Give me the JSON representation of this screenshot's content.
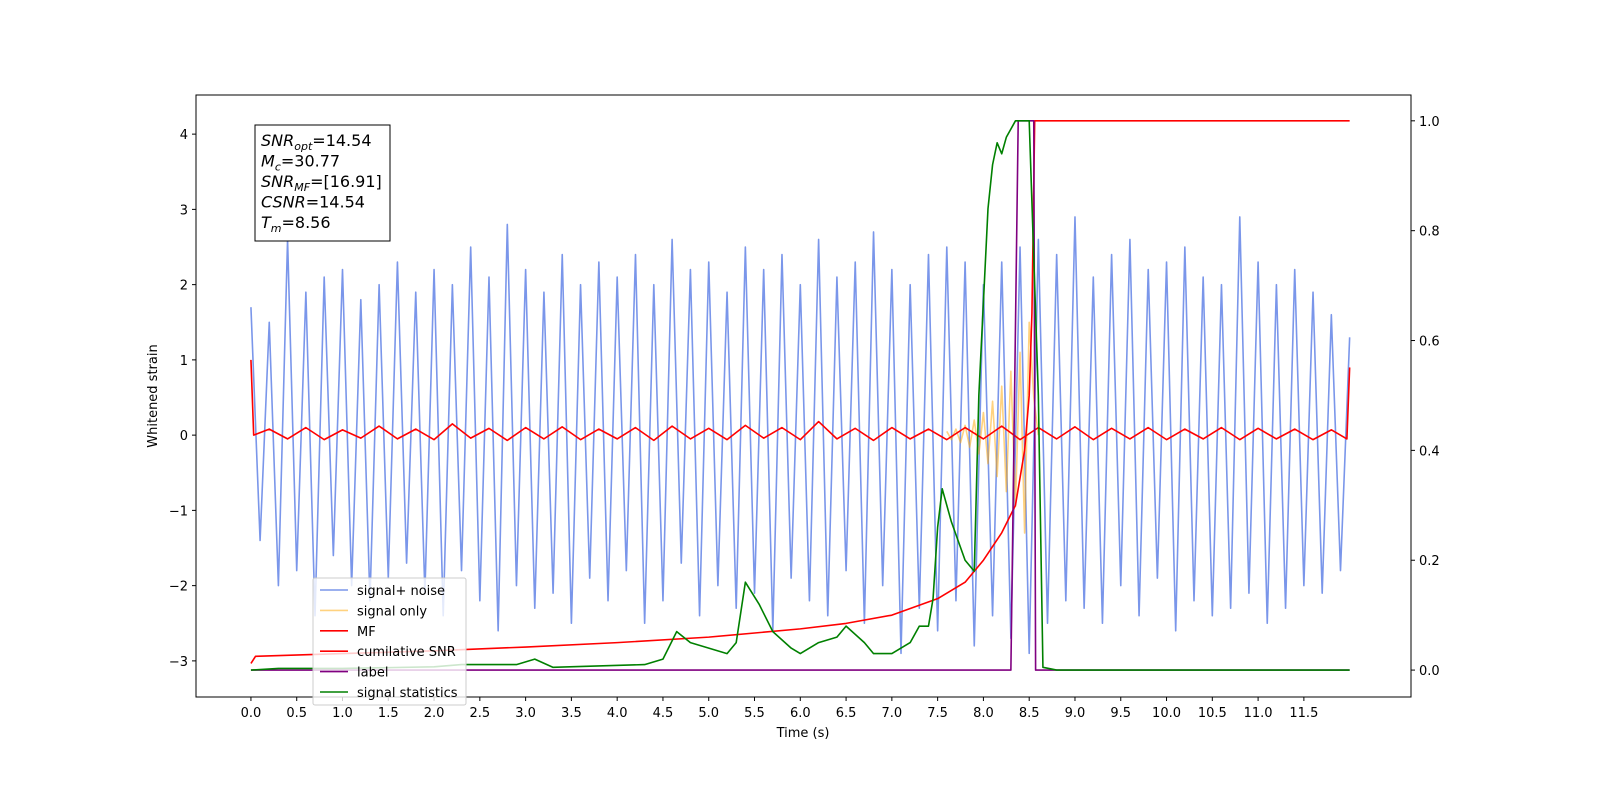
{
  "chart_data": {
    "type": "line",
    "xlabel": "Time (s)",
    "ylabel": "Whitened strain",
    "xlim": [
      -0.6,
      12.67
    ],
    "ylim": [
      -3.48,
      4.52
    ],
    "y2lim": [
      -0.049,
      1.047
    ],
    "xticks": [
      {
        "value": 0,
        "label": "0.0"
      },
      0.5,
      {
        "value": 1,
        "label": "1.0"
      },
      1.5,
      {
        "value": 2,
        "label": "2.0"
      },
      2.5,
      {
        "value": 3,
        "label": "3.0"
      },
      3.5,
      {
        "value": 4,
        "label": "4.0"
      },
      4.5,
      {
        "value": 5,
        "label": "5.0"
      },
      5.5,
      {
        "value": 6,
        "label": "6.0"
      },
      6.5,
      {
        "value": 7,
        "label": "7.0"
      },
      7.5,
      {
        "value": 8,
        "label": "8.0"
      },
      8.5,
      {
        "value": 9,
        "label": "9.0"
      },
      9.5,
      {
        "value": 10,
        "label": "10.0"
      },
      10.5,
      {
        "value": 11,
        "label": "11.0"
      },
      11.5
    ],
    "yticks": [
      {
        "value": -3,
        "label": "−3"
      },
      {
        "value": -2,
        "label": "−2"
      },
      {
        "value": -1,
        "label": "−1"
      },
      0,
      1,
      2,
      3,
      4
    ],
    "y2ticks": [
      {
        "value": 0,
        "label": "0.0"
      },
      {
        "value": 0.2,
        "label": "0.2"
      },
      {
        "value": 0.4,
        "label": "0.4"
      },
      {
        "value": 0.6,
        "label": "0.6"
      },
      {
        "value": 0.8,
        "label": "0.8"
      },
      {
        "value": 1,
        "label": "1.0"
      }
    ],
    "legend": "lower left",
    "annotations": [
      {
        "name": "SNR",
        "sub": "opt",
        "text": "=14.54"
      },
      {
        "name": "M",
        "sub": "c",
        "text": "=30.77"
      },
      {
        "name": "SNR",
        "sub": "MF",
        "text": "=[16.91]"
      },
      {
        "name": "CSNR",
        "text": "=14.54"
      },
      {
        "name": "T",
        "sub": "m",
        "text": "=8.56"
      }
    ],
    "series": [
      {
        "name": "signal+ noise",
        "color": "#4169e1b3",
        "x": [
          0,
          0.1,
          0.2,
          0.3,
          0.4,
          0.5,
          0.6,
          0.7,
          0.8,
          0.9,
          1,
          1.1,
          1.2,
          1.3,
          1.4,
          1.5,
          1.6,
          1.7,
          1.8,
          1.9,
          2,
          2.1,
          2.2,
          2.3,
          2.4,
          2.5,
          2.6,
          2.7,
          2.8,
          2.9,
          3,
          3.1,
          3.2,
          3.3,
          3.4,
          3.5,
          3.6,
          3.7,
          3.8,
          3.9,
          4,
          4.1,
          4.2,
          4.3,
          4.4,
          4.5,
          4.6,
          4.7,
          4.8,
          4.9,
          5,
          5.1,
          5.2,
          5.3,
          5.4,
          5.5,
          5.6,
          5.7,
          5.8,
          5.9,
          6,
          6.1,
          6.2,
          6.3,
          6.4,
          6.5,
          6.6,
          6.7,
          6.8,
          6.9,
          7,
          7.1,
          7.2,
          7.3,
          7.4,
          7.5,
          7.6,
          7.7,
          7.8,
          7.9,
          8,
          8.1,
          8.2,
          8.3,
          8.4,
          8.5,
          8.6,
          8.7,
          8.8,
          8.9,
          9,
          9.1,
          9.2,
          9.3,
          9.4,
          9.5,
          9.6,
          9.7,
          9.8,
          9.9,
          10,
          10.1,
          10.2,
          10.3,
          10.4,
          10.5,
          10.6,
          10.7,
          10.8,
          10.9,
          11,
          11.1,
          11.2,
          11.3,
          11.4,
          11.5,
          11.6,
          11.7,
          11.8,
          11.9,
          12
        ],
        "values": [
          1.7,
          -1.4,
          1.5,
          -2.0,
          2.6,
          -1.8,
          1.9,
          -2.4,
          2.1,
          -1.6,
          2.2,
          -2.0,
          1.8,
          -2.2,
          2.0,
          -1.9,
          2.3,
          -1.7,
          1.9,
          -2.1,
          2.2,
          -2.4,
          2.0,
          -1.8,
          2.5,
          -2.2,
          2.1,
          -2.6,
          2.8,
          -2.0,
          2.2,
          -2.3,
          1.9,
          -2.1,
          2.4,
          -2.5,
          2.0,
          -1.9,
          2.3,
          -2.2,
          2.1,
          -1.8,
          2.4,
          -2.5,
          2.0,
          -2.2,
          2.6,
          -1.7,
          2.2,
          -2.4,
          2.3,
          -2.0,
          1.9,
          -2.3,
          2.5,
          -2.1,
          2.2,
          -2.6,
          2.4,
          -1.9,
          2.0,
          -2.2,
          2.6,
          -2.4,
          2.1,
          -1.8,
          2.3,
          -2.5,
          2.7,
          -2.0,
          2.2,
          -2.9,
          2.0,
          -2.3,
          2.4,
          -2.6,
          2.5,
          -2.2,
          2.3,
          -2.8,
          2.0,
          -2.4,
          2.3,
          -2.7,
          2.5,
          -2.9,
          2.6,
          -2.5,
          2.4,
          -2.2,
          2.9,
          -2.3,
          2.1,
          -2.5,
          2.4,
          -2.0,
          2.6,
          -2.4,
          2.2,
          -1.9,
          2.3,
          -2.6,
          2.5,
          -2.2,
          2.1,
          -2.4,
          2.0,
          -2.3,
          2.9,
          -2.1,
          2.3,
          -2.5,
          2.0,
          -2.3,
          2.2,
          -2.0,
          1.9,
          -2.1,
          1.6,
          -1.8,
          1.3
        ]
      },
      {
        "name": "signal only",
        "color": "#ffa50080",
        "x": [
          7.6,
          7.65,
          7.7,
          7.75,
          7.8,
          7.85,
          7.9,
          7.95,
          8,
          8.05,
          8.1,
          8.15,
          8.2,
          8.25,
          8.3,
          8.35,
          8.4,
          8.45,
          8.5,
          8.55,
          8.6
        ],
        "values": [
          0.05,
          -0.06,
          0.08,
          -0.1,
          0.13,
          -0.16,
          0.2,
          -0.25,
          0.3,
          -0.38,
          0.45,
          -0.55,
          0.65,
          -0.75,
          0.85,
          -0.95,
          1.1,
          -1.3,
          1.5,
          0.5,
          0
        ]
      },
      {
        "name": "MF",
        "color": "#ff0000",
        "x": [
          0,
          0.03,
          0.2,
          0.4,
          0.6,
          0.8,
          1,
          1.2,
          1.4,
          1.6,
          1.8,
          2,
          2.2,
          2.4,
          2.6,
          2.8,
          3,
          3.2,
          3.4,
          3.6,
          3.8,
          4,
          4.2,
          4.4,
          4.6,
          4.8,
          5,
          5.2,
          5.4,
          5.6,
          5.8,
          6,
          6.2,
          6.4,
          6.6,
          6.8,
          7,
          7.2,
          7.4,
          7.6,
          7.8,
          8,
          8.2,
          8.4,
          8.6,
          8.8,
          9,
          9.2,
          9.4,
          9.6,
          9.8,
          10,
          10.2,
          10.4,
          10.6,
          10.8,
          11,
          11.2,
          11.4,
          11.6,
          11.8,
          11.97,
          12
        ],
        "values": [
          1.0,
          0.0,
          0.08,
          -0.05,
          0.1,
          -0.06,
          0.07,
          -0.04,
          0.12,
          -0.05,
          0.08,
          -0.06,
          0.15,
          -0.04,
          0.09,
          -0.07,
          0.1,
          -0.05,
          0.11,
          -0.06,
          0.08,
          -0.05,
          0.1,
          -0.07,
          0.12,
          -0.05,
          0.09,
          -0.06,
          0.13,
          -0.04,
          0.1,
          -0.06,
          0.18,
          -0.05,
          0.09,
          -0.07,
          0.1,
          -0.05,
          0.08,
          -0.06,
          0.1,
          -0.05,
          0.12,
          -0.06,
          0.1,
          -0.05,
          0.11,
          -0.06,
          0.09,
          -0.05,
          0.1,
          -0.06,
          0.08,
          -0.05,
          0.1,
          -0.06,
          0.09,
          -0.05,
          0.08,
          -0.06,
          0.07,
          -0.05,
          0.9
        ]
      },
      {
        "name": "cumilative SNR",
        "color": "#ff0000",
        "axis": "y2",
        "x": [
          0,
          0.05,
          1,
          2,
          3,
          4,
          5,
          6,
          6.5,
          7,
          7.5,
          7.8,
          8,
          8.2,
          8.35,
          8.45,
          8.5,
          8.53,
          8.56,
          9,
          10,
          11,
          12
        ],
        "values": [
          0.012,
          0.025,
          0.03,
          0.035,
          0.042,
          0.05,
          0.06,
          0.075,
          0.085,
          0.1,
          0.13,
          0.16,
          0.2,
          0.25,
          0.3,
          0.4,
          0.5,
          0.65,
          1.0,
          1.0,
          1.0,
          1.0,
          1.0
        ]
      },
      {
        "name": "label",
        "color": "#800080",
        "axis": "y2",
        "x": [
          0,
          8.3,
          8.38,
          8.55,
          8.57,
          12
        ],
        "values": [
          0,
          0,
          1,
          1,
          0,
          0
        ]
      },
      {
        "name": "signal statistics",
        "color": "#008000",
        "axis": "y2",
        "x": [
          0,
          0.3,
          1,
          2,
          2.3,
          2.9,
          3.1,
          3.3,
          4.3,
          4.5,
          4.65,
          4.8,
          5,
          5.2,
          5.3,
          5.4,
          5.55,
          5.7,
          5.9,
          6,
          6.2,
          6.4,
          6.5,
          6.7,
          6.8,
          7,
          7.2,
          7.3,
          7.4,
          7.45,
          7.5,
          7.55,
          7.65,
          7.8,
          7.9,
          7.95,
          8.05,
          8.1,
          8.15,
          8.2,
          8.25,
          8.35,
          8.5,
          8.6,
          8.65,
          8.8,
          12
        ],
        "values": [
          0,
          0.003,
          0.003,
          0.006,
          0.01,
          0.01,
          0.02,
          0.005,
          0.01,
          0.02,
          0.07,
          0.05,
          0.04,
          0.03,
          0.05,
          0.16,
          0.12,
          0.07,
          0.04,
          0.03,
          0.05,
          0.06,
          0.08,
          0.05,
          0.03,
          0.03,
          0.05,
          0.08,
          0.08,
          0.13,
          0.26,
          0.33,
          0.27,
          0.2,
          0.18,
          0.5,
          0.84,
          0.92,
          0.96,
          0.94,
          0.97,
          1.0,
          1.0,
          0.5,
          0.005,
          0,
          0
        ]
      }
    ]
  }
}
